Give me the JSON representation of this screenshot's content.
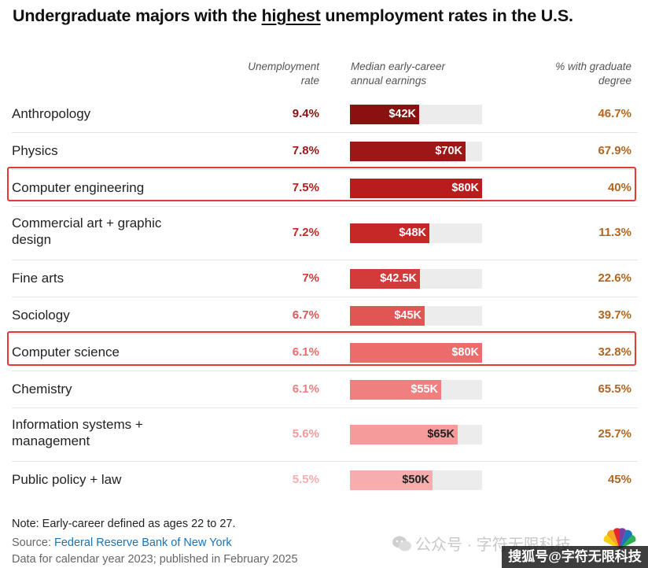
{
  "title": {
    "before": "Undergraduate majors with the ",
    "highlight": "highest",
    "after": " unemployment rates in the U.S."
  },
  "headers": {
    "unemployment": [
      "Unemployment",
      "rate"
    ],
    "earnings": [
      "Median early-career",
      "annual earnings"
    ],
    "grad": [
      "% with graduate",
      "degree"
    ]
  },
  "colors": {
    "rate_colors": [
      "#8b1111",
      "#9e1717",
      "#b81c1c",
      "#c62828",
      "#d43a3a",
      "#e25555",
      "#ec6b6b",
      "#f07f7f",
      "#f59b9b",
      "#f7adad"
    ],
    "grad_text": "#b5651d",
    "highlight_border": "#e53935",
    "label_dark": "#222222",
    "label_light": "#ffffff"
  },
  "chart_data": {
    "type": "table",
    "title": "Undergraduate majors with the highest unemployment rates in the U.S.",
    "columns": [
      "Unemployment rate",
      "Median early-career annual earnings",
      "% with graduate degree"
    ],
    "earnings_max": 80000,
    "rows": [
      {
        "major": "Anthropology",
        "unemployment": "9.4%",
        "earnings": 42000,
        "earnings_label": "$42K",
        "grad": "46.7%",
        "highlighted": false
      },
      {
        "major": "Physics",
        "unemployment": "7.8%",
        "earnings": 70000,
        "earnings_label": "$70K",
        "grad": "67.9%",
        "highlighted": false
      },
      {
        "major": "Computer engineering",
        "unemployment": "7.5%",
        "earnings": 80000,
        "earnings_label": "$80K",
        "grad": "40%",
        "highlighted": true
      },
      {
        "major": "Commercial art + graphic design",
        "unemployment": "7.2%",
        "earnings": 48000,
        "earnings_label": "$48K",
        "grad": "11.3%",
        "highlighted": false
      },
      {
        "major": "Fine arts",
        "unemployment": "7%",
        "earnings": 42500,
        "earnings_label": "$42.5K",
        "grad": "22.6%",
        "highlighted": false
      },
      {
        "major": "Sociology",
        "unemployment": "6.7%",
        "earnings": 45000,
        "earnings_label": "$45K",
        "grad": "39.7%",
        "highlighted": false
      },
      {
        "major": "Computer science",
        "unemployment": "6.1%",
        "earnings": 80000,
        "earnings_label": "$80K",
        "grad": "32.8%",
        "highlighted": true
      },
      {
        "major": "Chemistry",
        "unemployment": "6.1%",
        "earnings": 55000,
        "earnings_label": "$55K",
        "grad": "65.5%",
        "highlighted": false
      },
      {
        "major": "Information systems + management",
        "unemployment": "5.6%",
        "earnings": 65000,
        "earnings_label": "$65K",
        "grad": "25.7%",
        "highlighted": false
      },
      {
        "major": "Public policy + law",
        "unemployment": "5.5%",
        "earnings": 50000,
        "earnings_label": "$50K",
        "grad": "45%",
        "highlighted": false
      }
    ]
  },
  "footer": {
    "note": "Note: Early-career defined as ages 22 to 27.",
    "source_prefix": "Source: ",
    "source_link": "Federal Reserve Bank of New York",
    "data_line": "Data for calendar year 2023; published in February 2025"
  },
  "watermark": {
    "text": "公众号 · 字符无限科技",
    "badge": "搜狐号@字符无限科技",
    "icon": "wechat-icon",
    "logo": "cnbc-peacock-logo"
  }
}
